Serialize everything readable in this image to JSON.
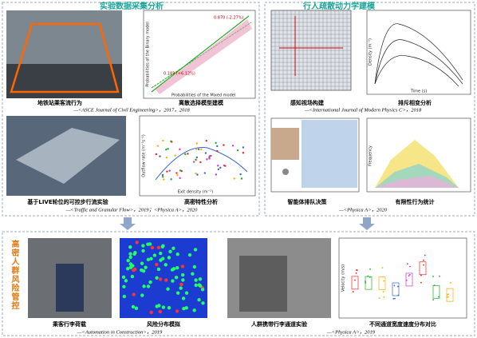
{
  "sections": [
    {
      "title": "实验数据采集分析",
      "figures": [
        {
          "caption": "地铁站乘客流行为"
        },
        {
          "caption": "离散选择模型建模"
        },
        {
          "caption": "基于LIVE轮位的可控步行流实验"
        },
        {
          "caption": "高密特性分析"
        }
      ],
      "citations": [
        "—<ASCE Journal of Civil Engineering>，2017，2018",
        "—<Traffic and Granular Flow>，2019；<Physica A>，2020"
      ],
      "chart_labels": [
        "Probabilities of the Binary model",
        "Probabilities of the Mixed model",
        "0.870 (-2.27%)",
        "0.183 (+6.12%)",
        "Exit density (m⁻²)",
        "Outflow rate (m⁻¹s⁻¹)"
      ]
    },
    {
      "title": "行人疏散动力学建模",
      "figures": [
        {
          "caption": "感知视场构建"
        },
        {
          "caption": "排斥相变分析"
        },
        {
          "caption": "智能体排队决策"
        },
        {
          "caption": "有限性行为统计"
        }
      ],
      "citations": [
        "—<International Journal of Modern Physics C>，2018",
        "—<Physica A>，2020"
      ],
      "chart_labels": [
        "Time (s)",
        "Density (m⁻²)",
        "Frequency"
      ]
    },
    {
      "title": "高密人群风险管控",
      "figures": [
        {
          "caption": "乘客行李荷载"
        },
        {
          "caption": "风险分布模拟"
        },
        {
          "caption": "人群携带行李通道实验"
        },
        {
          "caption": "不同通道宽度速度分布对比"
        }
      ],
      "citations": [
        "—<Automation in Construction>，2019",
        "—<Physica A>，2019"
      ],
      "chart_labels": [
        "Velocity (m/s)"
      ]
    }
  ]
}
